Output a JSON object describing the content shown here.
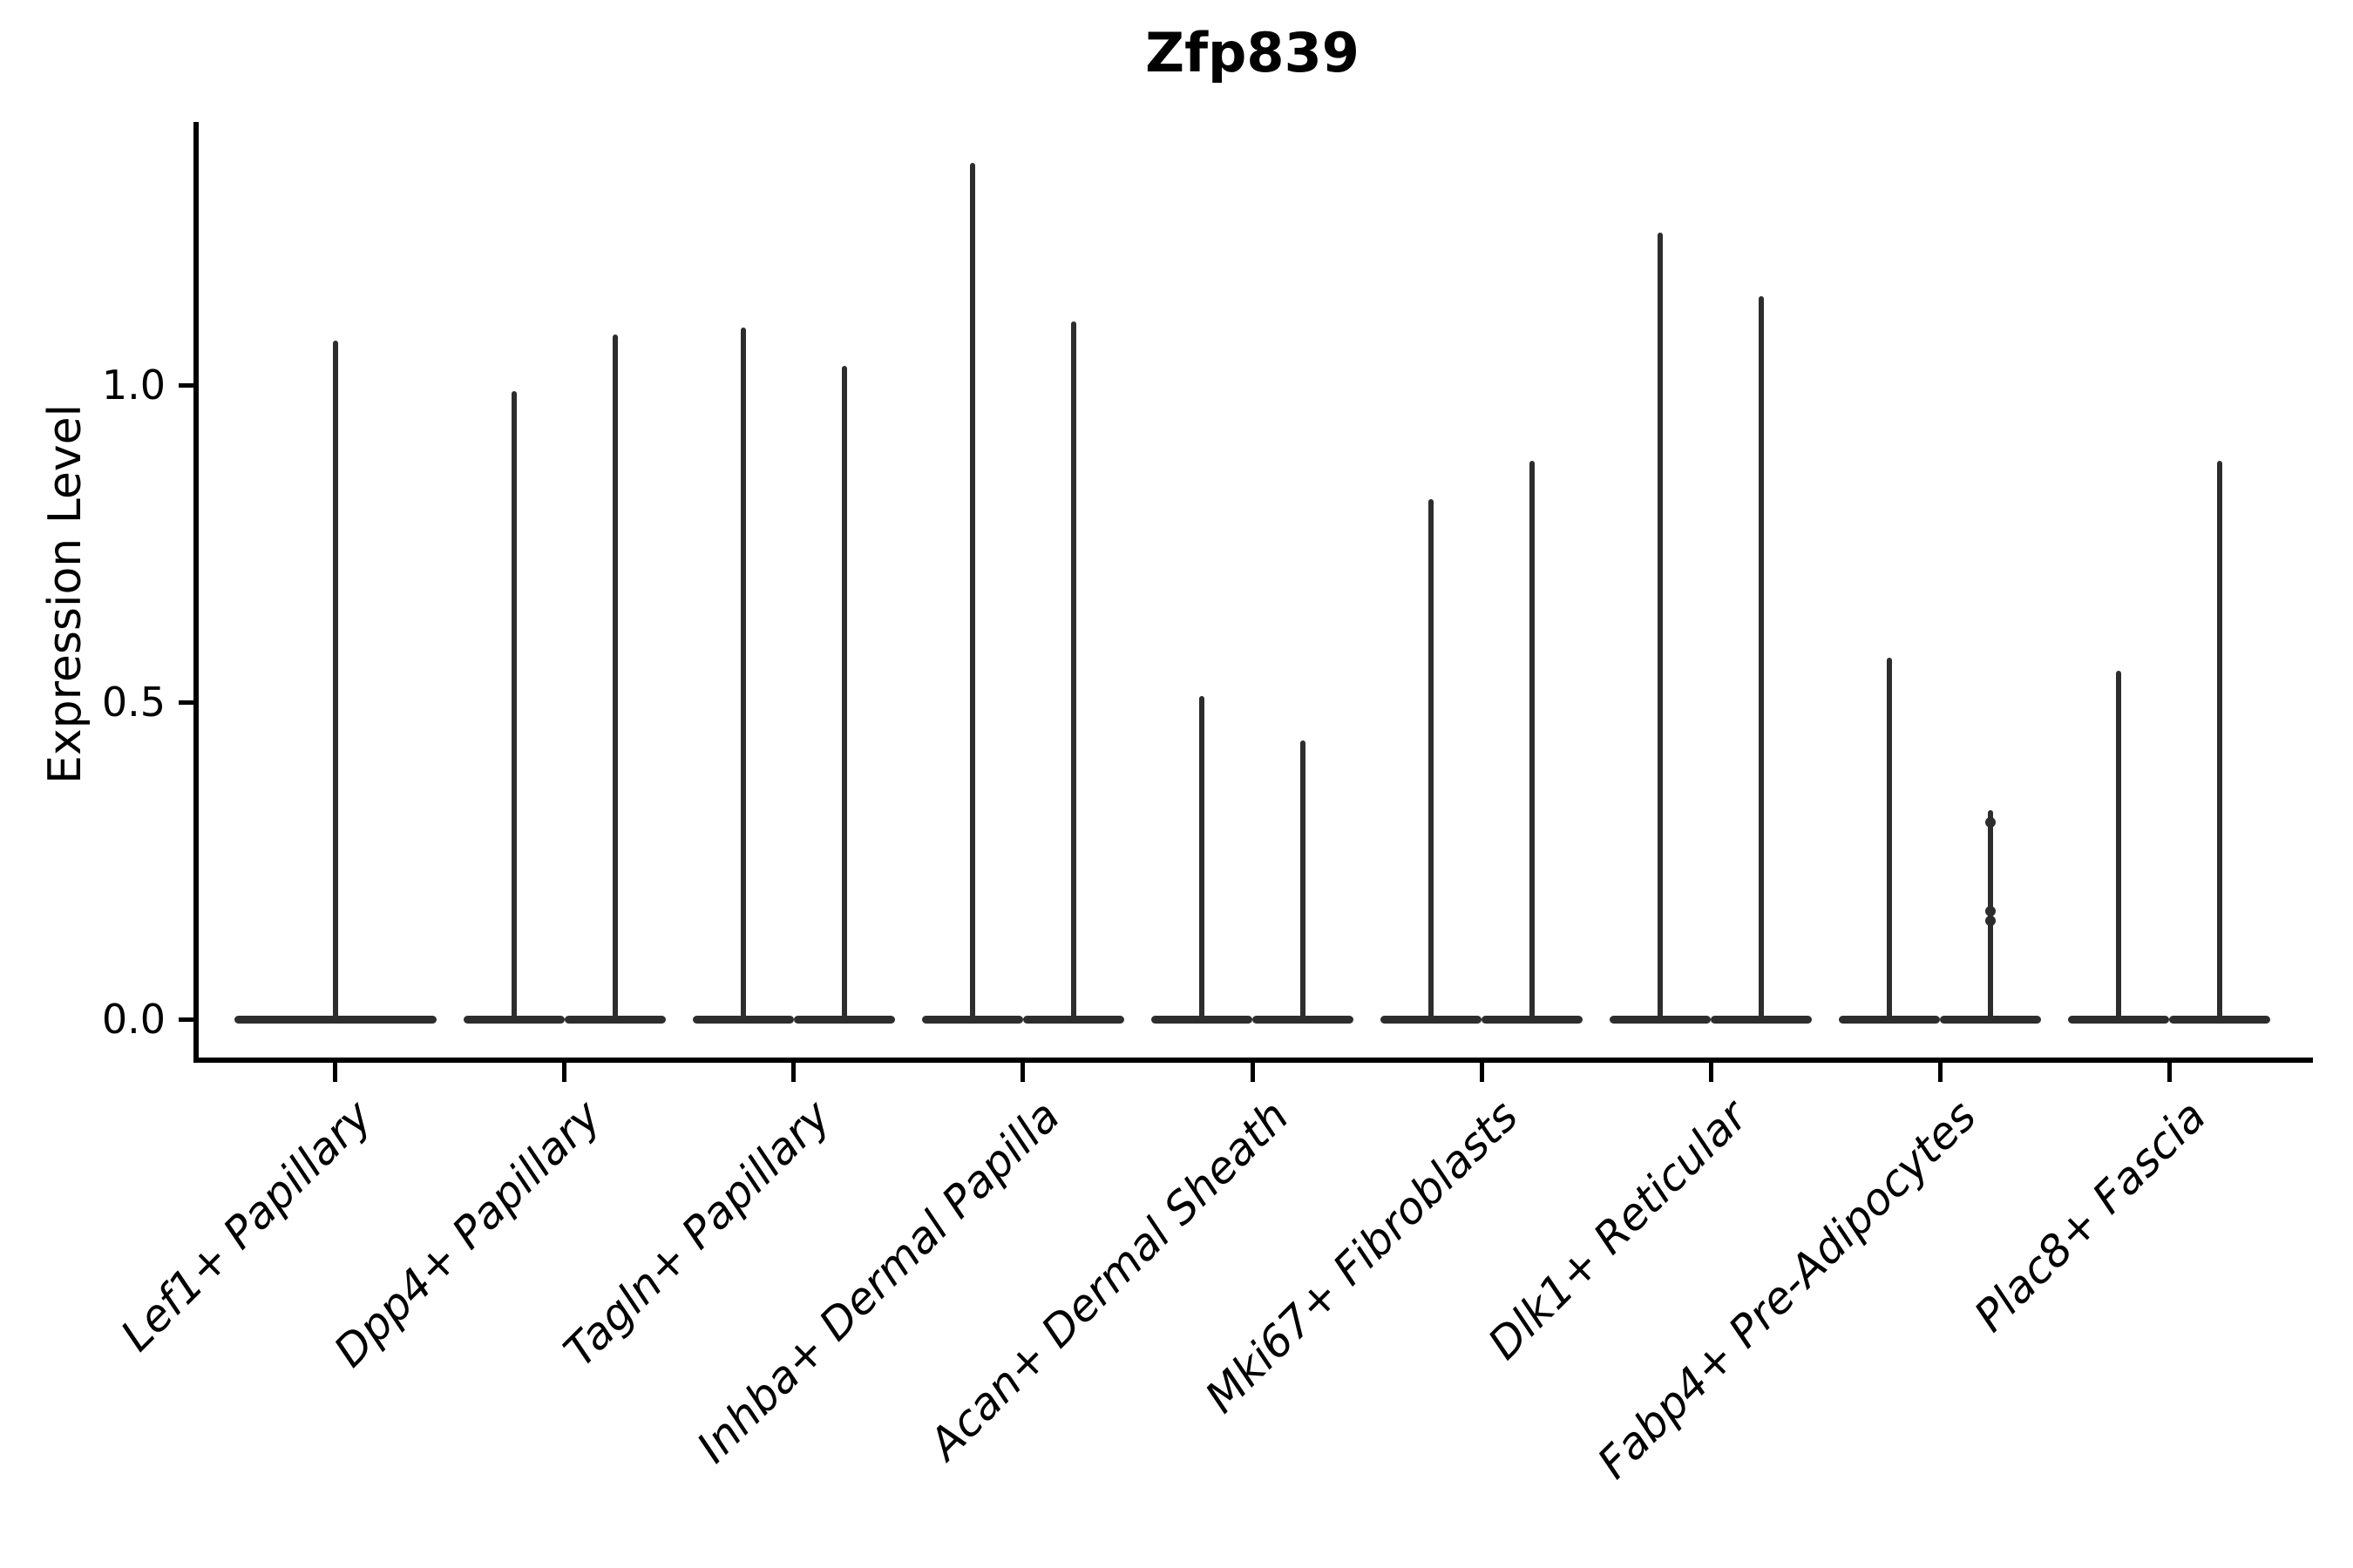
{
  "title": "Zfp839",
  "ylabel": "Expression Level",
  "colors": {
    "violin": "#2d2d2d",
    "axis": "#000000",
    "text": "#000000"
  },
  "chart_data": {
    "type": "violin",
    "title": "Zfp839",
    "xlabel": "",
    "ylabel": "Expression Level",
    "yticks": [
      "0.0",
      "0.5",
      "1.0"
    ],
    "ytick_values": [
      0.0,
      0.5,
      1.0
    ],
    "ylim": [
      -0.06,
      1.41
    ],
    "grid": false,
    "legend": "none",
    "description": "Sparse expression violins: flat base at 0 with a thin spike up to the max expression value per violin; two violins per group except the first group which has one full-width violin.",
    "categories": [
      "Lef1+ Papillary",
      "Dpp4+ Papillary",
      "Tagln+ Papillary",
      "Inhba+ Dermal Papilla",
      "Acan+ Dermal Sheath",
      "Mki67+ Fibroblasts",
      "Dlk1+ Reticular",
      "Fabp4+ Pre-Adipocytes",
      "Plac8+ Fascia"
    ],
    "groups": [
      {
        "label": "Lef1+ Papillary",
        "violins": [
          {
            "pos": 0,
            "max": 1.07
          }
        ]
      },
      {
        "label": "Dpp4+ Papillary",
        "violins": [
          {
            "pos": -1,
            "max": 0.99
          },
          {
            "pos": 1,
            "max": 1.08
          }
        ]
      },
      {
        "label": "Tagln+ Papillary",
        "violins": [
          {
            "pos": -1,
            "max": 1.09
          },
          {
            "pos": 1,
            "max": 1.03
          }
        ]
      },
      {
        "label": "Inhba+ Dermal Papilla",
        "violins": [
          {
            "pos": -1,
            "max": 1.35
          },
          {
            "pos": 1,
            "max": 1.1
          }
        ]
      },
      {
        "label": "Acan+ Dermal Sheath",
        "violins": [
          {
            "pos": -1,
            "max": 0.51
          },
          {
            "pos": 1,
            "max": 0.44
          }
        ]
      },
      {
        "label": "Mki67+ Fibroblasts",
        "violins": [
          {
            "pos": -1,
            "max": 0.82
          },
          {
            "pos": 1,
            "max": 0.88
          }
        ]
      },
      {
        "label": "Dlk1+ Reticular",
        "violins": [
          {
            "pos": -1,
            "max": 1.24
          },
          {
            "pos": 1,
            "max": 1.14
          }
        ]
      },
      {
        "label": "Fabp4+ Pre-Adipocytes",
        "violins": [
          {
            "pos": -1,
            "max": 0.57
          },
          {
            "pos": 1,
            "max": 0.33,
            "beads": [
              0.31,
              0.17,
              0.155
            ]
          }
        ]
      },
      {
        "label": "Plac8+ Fascia",
        "violins": [
          {
            "pos": -1,
            "max": 0.55
          },
          {
            "pos": 1,
            "max": 0.88
          }
        ]
      }
    ]
  }
}
